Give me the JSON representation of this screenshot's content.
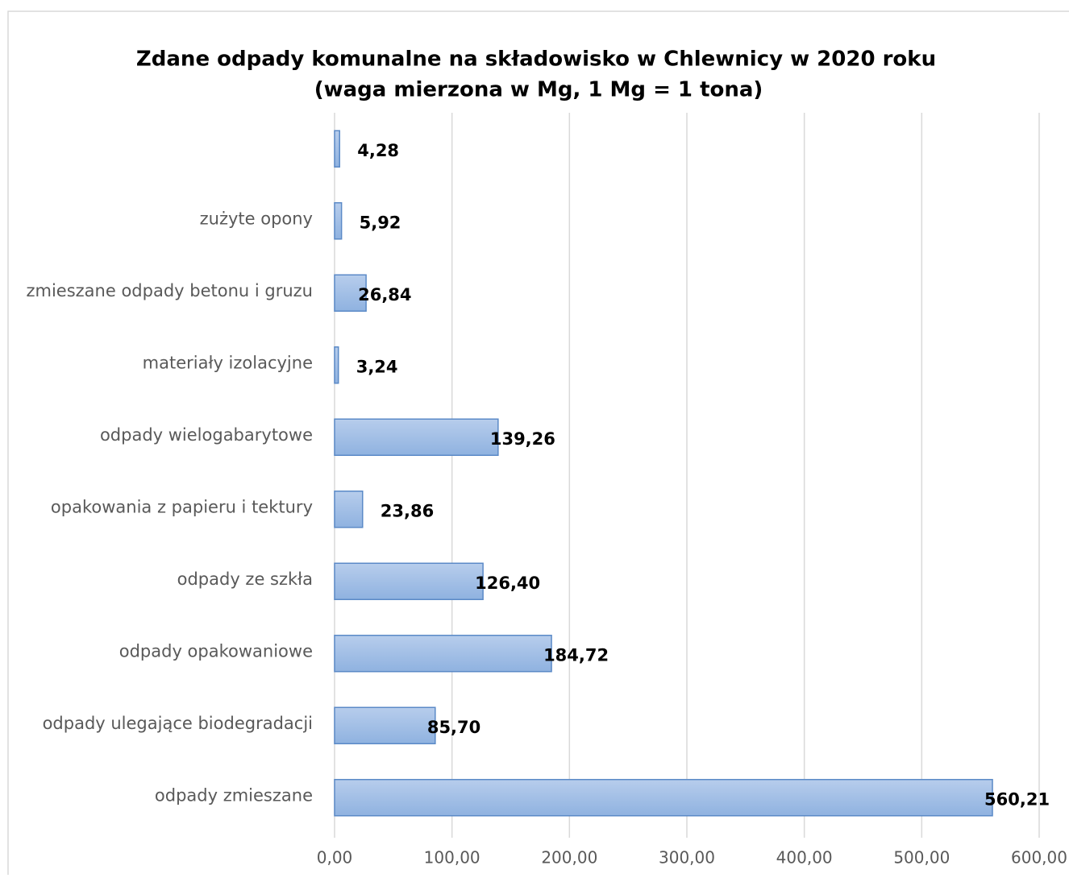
{
  "chart_data": {
    "type": "bar",
    "orientation": "horizontal",
    "title": "Zdane odpady komunalne na składowisko w Chlewnicy w  2020 roku",
    "subtitle": "(waga mierzona w Mg, 1 Mg = 1 tona)",
    "categories": [
      null,
      "zużyte opony",
      "zmieszane odpady betonu i gruzu",
      "materiały izolacyjne",
      "odpady wielogabarytowe",
      "opakowania z papieru i tektury",
      "odpady ze szkła",
      "odpady opakowaniowe",
      "odpady ulegające biodegradacji",
      "odpady zmieszane"
    ],
    "values": [
      4.28,
      5.92,
      26.84,
      3.24,
      139.26,
      23.86,
      126.4,
      184.72,
      85.7,
      560.21
    ],
    "value_labels": [
      "4,28",
      "5,92",
      "26,84",
      "3,24",
      "139,26",
      "23,86",
      "126,40",
      "184,72",
      "85,70",
      "560,21"
    ],
    "color": "#95b8e3",
    "xlim": [
      0,
      600
    ],
    "xticks": [
      {
        "value": 0,
        "label": "0,00"
      },
      {
        "value": 100,
        "label": "100,00"
      },
      {
        "value": 200,
        "label": "200,00"
      },
      {
        "value": 300,
        "label": "300,00"
      },
      {
        "value": 400,
        "label": "400,00"
      },
      {
        "value": 500,
        "label": "500,00"
      },
      {
        "value": 600,
        "label": "600,00"
      }
    ],
    "grid": true
  }
}
